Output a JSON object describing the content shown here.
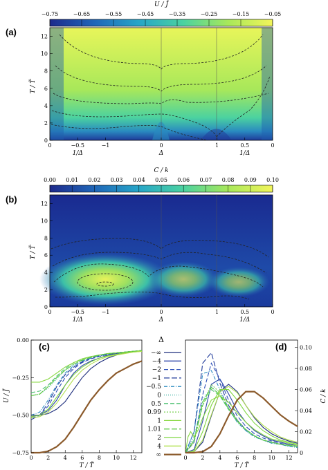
{
  "panels": {
    "a": {
      "label": "(a)"
    },
    "b": {
      "label": "(b)"
    },
    "c": {
      "label": "(c)"
    },
    "d": {
      "label": "(d)"
    }
  },
  "chart_data": [
    {
      "type": "heatmap",
      "panel": "(a)",
      "colorbar_label": "U / J̃",
      "colorbar_ticks": [
        "−0.75",
        "−0.65",
        "−0.55",
        "−0.45",
        "−0.35",
        "−0.25",
        "−0.15",
        "−0.05"
      ],
      "zlim": [
        -0.75,
        -0.05
      ],
      "ylabel": "T / T̃",
      "yticks": [
        "0",
        "2",
        "4",
        "6",
        "8",
        "10",
        "12"
      ],
      "ylim": [
        0,
        13
      ],
      "xticks_top": [
        "0",
        "−0.5",
        "−1",
        "0",
        "1",
        "0.5",
        "0"
      ],
      "xlabels_bottom": [
        "1/Δ",
        "Δ",
        "1/Δ"
      ],
      "colormap": [
        "#1e2a8c",
        "#1f66b8",
        "#27a6c8",
        "#4bd2a0",
        "#a8e85a",
        "#e8f55a"
      ]
    },
    {
      "type": "heatmap",
      "panel": "(b)",
      "colorbar_label": "C / k",
      "colorbar_ticks": [
        "0.00",
        "0.01",
        "0.02",
        "0.03",
        "0.04",
        "0.05",
        "0.06",
        "0.07",
        "0.08",
        "0.09",
        "0.10"
      ],
      "zlim": [
        0,
        0.1
      ],
      "ylabel": "T / T̃",
      "yticks": [
        "0",
        "2",
        "4",
        "6",
        "8",
        "10",
        "12"
      ],
      "ylim": [
        0,
        13
      ],
      "xticks_top": [
        "0",
        "−0.5",
        "−1",
        "0",
        "1",
        "0.5",
        "0"
      ],
      "xlabels_bottom": [
        "1/Δ",
        "Δ",
        "1/Δ"
      ]
    },
    {
      "type": "line",
      "panel": "(c)",
      "xlabel": "T / T̃",
      "ylabel": "U / J̃",
      "xlim": [
        0,
        13
      ],
      "ylim": [
        -0.75,
        0
      ],
      "xticks": [
        "0",
        "2",
        "4",
        "6",
        "8",
        "10",
        "12"
      ],
      "yticks": [
        "0.00",
        "−0.25",
        "−0.50",
        "−0.75"
      ],
      "series": [
        {
          "name": "−∞",
          "color": "#1a2a7a",
          "dash": "",
          "x": [
            0,
            1,
            2,
            3,
            4,
            5,
            6,
            7,
            8,
            9,
            10,
            11,
            12,
            13
          ],
          "y": [
            -0.5,
            -0.5,
            -0.49,
            -0.46,
            -0.41,
            -0.33,
            -0.25,
            -0.19,
            -0.15,
            -0.12,
            -0.1,
            -0.085,
            -0.075,
            -0.07
          ]
        },
        {
          "name": "−4",
          "color": "#2c44a8",
          "dash": "",
          "x": [
            0,
            1,
            2,
            3,
            4,
            5,
            6,
            7,
            8,
            9,
            10,
            11,
            12,
            13
          ],
          "y": [
            -0.51,
            -0.5,
            -0.47,
            -0.4,
            -0.3,
            -0.22,
            -0.17,
            -0.14,
            -0.12,
            -0.1,
            -0.09,
            -0.08,
            -0.075,
            -0.07
          ]
        },
        {
          "name": "−2",
          "color": "#2c4fb8",
          "dash": "6,3",
          "x": [
            0,
            1,
            2,
            3,
            4,
            5,
            6,
            7,
            8,
            9,
            10,
            11,
            12,
            13
          ],
          "y": [
            -0.52,
            -0.5,
            -0.44,
            -0.34,
            -0.25,
            -0.19,
            -0.15,
            -0.125,
            -0.11,
            -0.095,
            -0.085,
            -0.08,
            -0.075,
            -0.07
          ]
        },
        {
          "name": "−1",
          "color": "#1f3a9a",
          "dash": "8,3",
          "x": [
            0,
            1,
            2,
            3,
            4,
            5,
            6,
            7,
            8,
            9,
            10,
            11,
            12,
            13
          ],
          "y": [
            -0.53,
            -0.5,
            -0.42,
            -0.31,
            -0.23,
            -0.18,
            -0.145,
            -0.12,
            -0.105,
            -0.095,
            -0.085,
            -0.08,
            -0.075,
            -0.07
          ]
        },
        {
          "name": "−0.5",
          "color": "#2a8ac0",
          "dash": "5,2,1,2",
          "x": [
            0,
            1,
            2,
            3,
            4,
            5,
            6,
            7,
            8,
            9,
            10,
            11,
            12,
            13
          ],
          "y": [
            -0.5,
            -0.48,
            -0.4,
            -0.3,
            -0.22,
            -0.17,
            -0.14,
            -0.12,
            -0.105,
            -0.095,
            -0.085,
            -0.08,
            -0.075,
            -0.07
          ]
        },
        {
          "name": "0",
          "color": "#3ab0a0",
          "dash": "1,2",
          "x": [
            0,
            1,
            2,
            3,
            4,
            5,
            6,
            7,
            8,
            9,
            10,
            11,
            12,
            13
          ],
          "y": [
            -0.37,
            -0.36,
            -0.32,
            -0.26,
            -0.2,
            -0.16,
            -0.13,
            -0.11,
            -0.1,
            -0.09,
            -0.085,
            -0.08,
            -0.075,
            -0.07
          ]
        },
        {
          "name": "0.5",
          "color": "#4cc070",
          "dash": "6,3",
          "x": [
            0,
            1,
            2,
            3,
            4,
            5,
            6,
            7,
            8,
            9,
            10,
            11,
            12,
            13
          ],
          "y": [
            -0.35,
            -0.34,
            -0.3,
            -0.24,
            -0.19,
            -0.15,
            -0.125,
            -0.11,
            -0.1,
            -0.09,
            -0.085,
            -0.08,
            -0.075,
            -0.07
          ]
        },
        {
          "name": "0.99",
          "color": "#78d050",
          "dash": "2,2",
          "x": [
            0,
            1,
            2,
            3,
            4,
            5,
            6,
            7,
            8,
            9,
            10,
            11,
            12,
            13
          ],
          "y": [
            -0.37,
            -0.36,
            -0.31,
            -0.25,
            -0.2,
            -0.16,
            -0.13,
            -0.115,
            -0.1,
            -0.09,
            -0.085,
            -0.08,
            -0.075,
            -0.07
          ]
        },
        {
          "name": "1",
          "color": "#88d840",
          "dash": "",
          "x": [
            0,
            1,
            2,
            3,
            4,
            5,
            6,
            7,
            8,
            9,
            10,
            11,
            12,
            13
          ],
          "y": [
            -0.28,
            -0.28,
            -0.26,
            -0.22,
            -0.18,
            -0.15,
            -0.125,
            -0.11,
            -0.1,
            -0.09,
            -0.085,
            -0.08,
            -0.075,
            -0.07
          ]
        },
        {
          "name": "1.01",
          "color": "#5bc840",
          "dash": "8,3",
          "x": [
            0,
            1,
            2,
            3,
            4,
            5,
            6,
            7,
            8,
            9,
            10,
            11,
            12,
            13
          ],
          "y": [
            -0.37,
            -0.36,
            -0.31,
            -0.25,
            -0.2,
            -0.16,
            -0.135,
            -0.115,
            -0.1,
            -0.09,
            -0.085,
            -0.08,
            -0.075,
            -0.07
          ]
        },
        {
          "name": "2",
          "color": "#7ed640",
          "dash": "",
          "x": [
            0,
            1,
            2,
            3,
            4,
            5,
            6,
            7,
            8,
            9,
            10,
            11,
            12,
            13
          ],
          "y": [
            -0.51,
            -0.5,
            -0.46,
            -0.38,
            -0.3,
            -0.23,
            -0.18,
            -0.145,
            -0.12,
            -0.105,
            -0.095,
            -0.085,
            -0.08,
            -0.075
          ]
        },
        {
          "name": "4",
          "color": "#b2e050",
          "dash": "",
          "x": [
            0,
            1,
            2,
            3,
            4,
            5,
            6,
            7,
            8,
            9,
            10,
            11,
            12,
            13
          ],
          "y": [
            -0.52,
            -0.51,
            -0.48,
            -0.42,
            -0.34,
            -0.26,
            -0.2,
            -0.16,
            -0.13,
            -0.11,
            -0.1,
            -0.09,
            -0.08,
            -0.075
          ]
        },
        {
          "name": "∞",
          "color": "#8b5a2b",
          "dash": "",
          "x": [
            0,
            1,
            2,
            3,
            4,
            5,
            6,
            7,
            8,
            9,
            10,
            11,
            12,
            13
          ],
          "y": [
            -0.75,
            -0.75,
            -0.74,
            -0.71,
            -0.66,
            -0.58,
            -0.49,
            -0.4,
            -0.33,
            -0.27,
            -0.22,
            -0.19,
            -0.16,
            -0.14
          ]
        }
      ]
    },
    {
      "type": "line",
      "panel": "(d)",
      "xlabel": "T / T̃",
      "ylabel": "C / k",
      "xlim": [
        0,
        13
      ],
      "ylim": [
        0,
        0.107
      ],
      "xticks": [
        "0",
        "2",
        "4",
        "6",
        "8",
        "10",
        "12"
      ],
      "yticks": [
        "0",
        "0.02",
        "0.04",
        "0.06",
        "0.08",
        "0.10"
      ],
      "series": [
        {
          "name": "−∞",
          "color": "#1a2a7a",
          "dash": "",
          "x": [
            0,
            1,
            2,
            3,
            4,
            5,
            6,
            7,
            8,
            9,
            10,
            11,
            12,
            13
          ],
          "y": [
            0,
            0.001,
            0.01,
            0.035,
            0.058,
            0.065,
            0.058,
            0.045,
            0.033,
            0.024,
            0.018,
            0.014,
            0.011,
            0.009
          ]
        },
        {
          "name": "−4",
          "color": "#2c44a8",
          "dash": "",
          "x": [
            0,
            1,
            2,
            3,
            4,
            5,
            6,
            7,
            8,
            9,
            10,
            11,
            12,
            13
          ],
          "y": [
            0,
            0.003,
            0.03,
            0.065,
            0.07,
            0.056,
            0.04,
            0.029,
            0.021,
            0.016,
            0.012,
            0.01,
            0.008,
            0.007
          ]
        },
        {
          "name": "−2",
          "color": "#2c4fb8",
          "dash": "6,3",
          "x": [
            0,
            1,
            2,
            3,
            4,
            5,
            6,
            7,
            8,
            9,
            10,
            11,
            12,
            13
          ],
          "y": [
            0,
            0.01,
            0.055,
            0.085,
            0.07,
            0.05,
            0.035,
            0.025,
            0.018,
            0.014,
            0.011,
            0.009,
            0.007,
            0.006
          ]
        },
        {
          "name": "−1",
          "color": "#1f3a9a",
          "dash": "8,3",
          "x": [
            0,
            1,
            2,
            3,
            4,
            5,
            6,
            7,
            8,
            9,
            10,
            11,
            12,
            13
          ],
          "y": [
            0,
            0.02,
            0.085,
            0.095,
            0.066,
            0.045,
            0.031,
            0.022,
            0.016,
            0.012,
            0.01,
            0.008,
            0.007,
            0.006
          ]
        },
        {
          "name": "−0.5",
          "color": "#2a8ac0",
          "dash": "5,2,1,2",
          "x": [
            0,
            1,
            2,
            3,
            4,
            5,
            6,
            7,
            8,
            9,
            10,
            11,
            12,
            13
          ],
          "y": [
            0,
            0.02,
            0.075,
            0.078,
            0.06,
            0.042,
            0.029,
            0.021,
            0.015,
            0.012,
            0.009,
            0.008,
            0.006,
            0.005
          ]
        },
        {
          "name": "0",
          "color": "#3ab0a0",
          "dash": "1,2",
          "x": [
            0,
            1,
            2,
            3,
            4,
            5,
            6,
            7,
            8,
            9,
            10,
            11,
            12,
            13
          ],
          "y": [
            0,
            0.015,
            0.05,
            0.063,
            0.055,
            0.041,
            0.029,
            0.021,
            0.015,
            0.012,
            0.009,
            0.008,
            0.006,
            0.005
          ]
        },
        {
          "name": "0.5",
          "color": "#4cc070",
          "dash": "6,3",
          "x": [
            0,
            1,
            2,
            3,
            4,
            5,
            6,
            7,
            8,
            9,
            10,
            11,
            12,
            13
          ],
          "y": [
            0,
            0.012,
            0.045,
            0.06,
            0.054,
            0.041,
            0.03,
            0.022,
            0.016,
            0.012,
            0.01,
            0.008,
            0.007,
            0.006
          ]
        },
        {
          "name": "0.99",
          "color": "#78d050",
          "dash": "2,2",
          "x": [
            0,
            1,
            2,
            3,
            4,
            5,
            6,
            7,
            8,
            9,
            10,
            11,
            12,
            13
          ],
          "y": [
            0,
            0.01,
            0.045,
            0.065,
            0.057,
            0.043,
            0.031,
            0.022,
            0.016,
            0.012,
            0.01,
            0.008,
            0.007,
            0.006
          ]
        },
        {
          "name": "1",
          "color": "#88d840",
          "dash": "",
          "x": [
            0,
            0.3,
            0.6,
            1,
            1.5,
            2,
            3,
            4,
            5,
            6,
            7,
            8,
            9,
            10,
            11,
            12,
            13
          ],
          "y": [
            0,
            0.015,
            0.02,
            0.015,
            0.022,
            0.033,
            0.05,
            0.054,
            0.048,
            0.038,
            0.029,
            0.022,
            0.017,
            0.013,
            0.011,
            0.009,
            0.007
          ]
        },
        {
          "name": "1.01",
          "color": "#5bc840",
          "dash": "8,3",
          "x": [
            0,
            1,
            2,
            3,
            4,
            5,
            6,
            7,
            8,
            9,
            10,
            11,
            12,
            13
          ],
          "y": [
            0,
            0.012,
            0.048,
            0.062,
            0.055,
            0.042,
            0.03,
            0.022,
            0.016,
            0.012,
            0.01,
            0.008,
            0.007,
            0.006
          ]
        },
        {
          "name": "2",
          "color": "#7ed640",
          "dash": "",
          "x": [
            0,
            1,
            2,
            3,
            4,
            5,
            6,
            7,
            8,
            9,
            10,
            11,
            12,
            13
          ],
          "y": [
            0,
            0.002,
            0.02,
            0.045,
            0.06,
            0.06,
            0.05,
            0.038,
            0.028,
            0.021,
            0.016,
            0.012,
            0.01,
            0.008
          ]
        },
        {
          "name": "4",
          "color": "#b2e050",
          "dash": "",
          "x": [
            0,
            1,
            2,
            3,
            4,
            5,
            6,
            7,
            8,
            9,
            10,
            11,
            12,
            13
          ],
          "y": [
            0,
            0.001,
            0.012,
            0.036,
            0.058,
            0.063,
            0.057,
            0.045,
            0.034,
            0.026,
            0.02,
            0.015,
            0.012,
            0.01
          ]
        },
        {
          "name": "∞",
          "color": "#8b5a2b",
          "dash": "",
          "x": [
            0,
            1,
            2,
            3,
            4,
            5,
            6,
            7,
            8,
            9,
            10,
            11,
            12,
            13
          ],
          "y": [
            0,
            0,
            0.001,
            0.006,
            0.018,
            0.035,
            0.05,
            0.058,
            0.058,
            0.052,
            0.044,
            0.036,
            0.03,
            0.025
          ]
        }
      ]
    }
  ],
  "legend": {
    "title": "Δ",
    "entries": [
      "−∞",
      "−4",
      "−2",
      "−1",
      "−0.5",
      "0",
      "0.5",
      "0.99",
      "1",
      "1.01",
      "2",
      "4",
      "∞"
    ]
  }
}
